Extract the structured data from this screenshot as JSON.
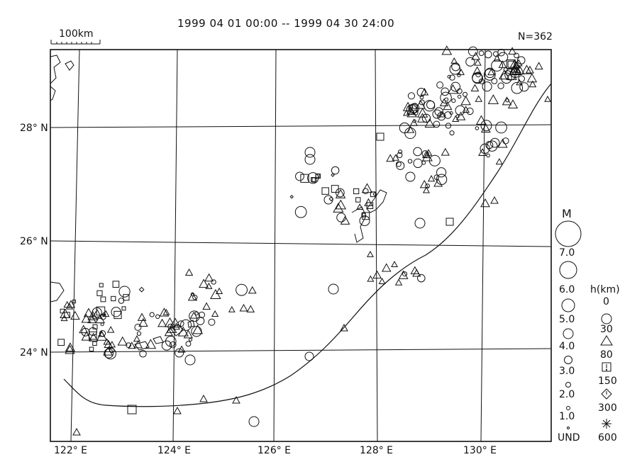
{
  "title": "1999 04 01 00:00 -- 1999 04 30 24:00",
  "count_label": "N=362",
  "scale_bar": {
    "label": "100km"
  },
  "lat_labels": [
    "28° N",
    "26° N",
    "24° N"
  ],
  "lon_labels": [
    "122° E",
    "124° E",
    "126° E",
    "128° E",
    "130° E"
  ],
  "legend_magnitude": {
    "title": "M",
    "labels": [
      "7.0",
      "6.0",
      "5.0",
      "4.0",
      "3.0",
      "2.0",
      "1.0",
      "UND"
    ]
  },
  "legend_depth": {
    "title": "h(km)",
    "labels": [
      "0",
      "30",
      "80",
      "150",
      "300",
      "600"
    ],
    "symbols": [
      "circle",
      "triangle",
      "square-bang",
      "diamond-bang",
      "asterisk"
    ]
  }
}
